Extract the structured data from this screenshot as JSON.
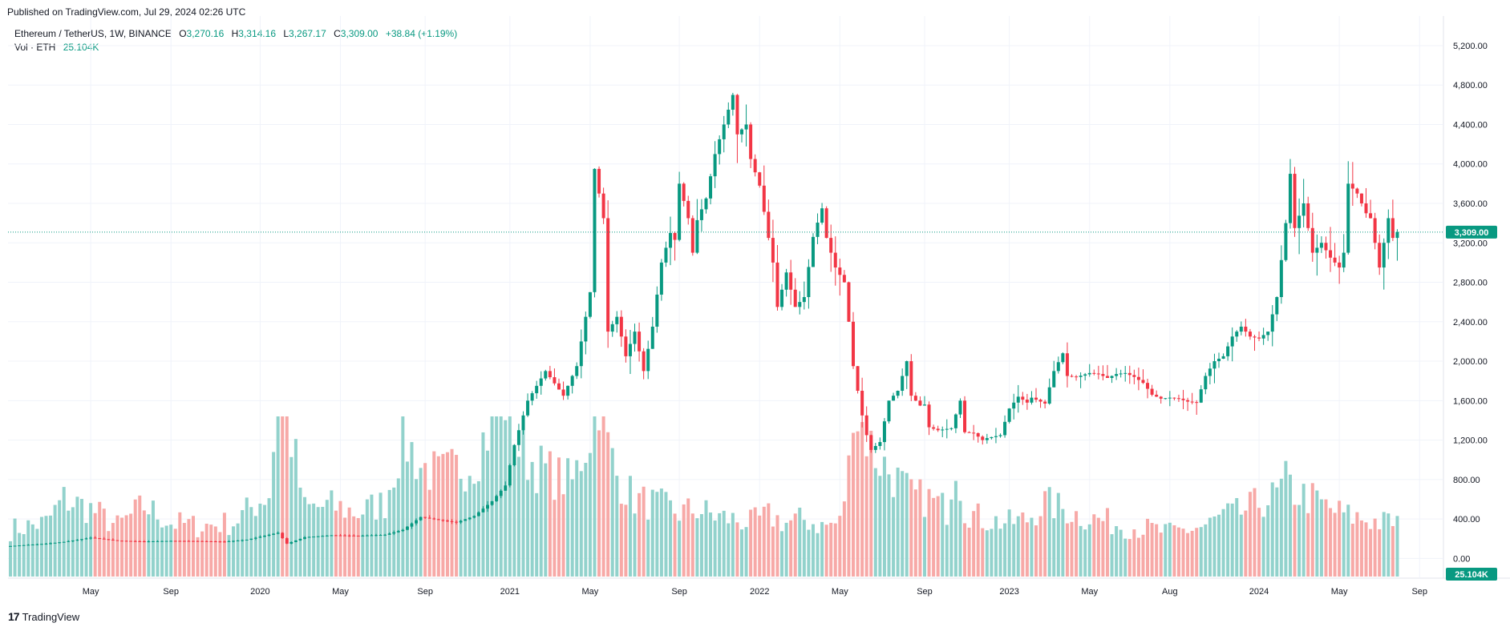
{
  "header": {
    "published": "Published on TradingView.com, Jul 29, 2024 02:26 UTC"
  },
  "legend": {
    "symbol": "Ethereum / TetherUS, 1W, BINANCE",
    "open_label": "O",
    "open": "3,270.16",
    "high_label": "H",
    "high": "3,314.16",
    "low_label": "L",
    "low": "3,267.17",
    "close_label": "C",
    "close": "3,309.00",
    "change": "+38.84 (+1.19%)",
    "vol_label": "Vol · ETH",
    "vol_value": "25.104K"
  },
  "footer": {
    "logo_mark": "17",
    "logo_text": "TradingView"
  },
  "colors": {
    "up": "#089981",
    "down": "#f23645",
    "vol_up": "#92d2cc",
    "vol_down": "#f7a9a7",
    "grid": "#f0f3fa",
    "axis_text": "#131722"
  },
  "chart_data": {
    "type": "candlestick",
    "symbol": "ETHUSDT",
    "interval": "1W",
    "exchange": "BINANCE",
    "last_price": 3309.0,
    "last_price_label": "3,309.00",
    "last_volume_label": "25.104K",
    "y_axis": {
      "ticks": [
        "5,200.00",
        "4,800.00",
        "4,400.00",
        "4,000.00",
        "3,600.00",
        "3,200.00",
        "2,800.00",
        "2,400.00",
        "2,000.00",
        "1,600.00",
        "1,200.00",
        "800.00",
        "400.00",
        "0.00"
      ],
      "tick_values": [
        5200,
        4800,
        4400,
        4000,
        3600,
        3200,
        2800,
        2400,
        2000,
        1600,
        1200,
        800,
        400,
        0
      ],
      "range": [
        -200,
        5500
      ]
    },
    "x_axis": {
      "ticks": [
        "May",
        "Sep",
        "2020",
        "May",
        "Sep",
        "2021",
        "May",
        "Sep",
        "2022",
        "May",
        "Sep",
        "2023",
        "May",
        "Aug",
        "2024",
        "May",
        "Sep"
      ],
      "tick_bar_index": [
        18,
        36,
        56,
        74,
        93,
        112,
        130,
        150,
        168,
        186,
        205,
        224,
        242,
        260,
        280,
        298,
        316
      ]
    },
    "anchors": [
      [
        0,
        126
      ],
      [
        8,
        150
      ],
      [
        12,
        168
      ],
      [
        18,
        210
      ],
      [
        24,
        180
      ],
      [
        30,
        172
      ],
      [
        36,
        178
      ],
      [
        42,
        176
      ],
      [
        48,
        170
      ],
      [
        53,
        190
      ],
      [
        57,
        230
      ],
      [
        60,
        260
      ],
      [
        62,
        150
      ],
      [
        66,
        215
      ],
      [
        72,
        235
      ],
      [
        78,
        230
      ],
      [
        84,
        240
      ],
      [
        88,
        290
      ],
      [
        92,
        420
      ],
      [
        96,
        390
      ],
      [
        100,
        365
      ],
      [
        104,
        430
      ],
      [
        108,
        580
      ],
      [
        111,
        740
      ],
      [
        113,
        1150
      ],
      [
        116,
        1600
      ],
      [
        120,
        1900
      ],
      [
        124,
        1650
      ],
      [
        127,
        1950
      ],
      [
        130,
        2700
      ],
      [
        131,
        3950
      ],
      [
        133,
        3450
      ],
      [
        134,
        2300
      ],
      [
        136,
        2450
      ],
      [
        138,
        2050
      ],
      [
        140,
        2300
      ],
      [
        142,
        1900
      ],
      [
        144,
        2350
      ],
      [
        146,
        3000
      ],
      [
        148,
        3300
      ],
      [
        149,
        3230
      ],
      [
        150,
        3800
      ],
      [
        152,
        3450
      ],
      [
        153,
        3100
      ],
      [
        154,
        3430
      ],
      [
        156,
        3650
      ],
      [
        158,
        4100
      ],
      [
        161,
        4550
      ],
      [
        162,
        4700
      ],
      [
        163,
        4300
      ],
      [
        165,
        4400
      ],
      [
        166,
        4050
      ],
      [
        168,
        3780
      ],
      [
        170,
        3250
      ],
      [
        171,
        3000
      ],
      [
        172,
        2550
      ],
      [
        174,
        2900
      ],
      [
        176,
        2550
      ],
      [
        178,
        2650
      ],
      [
        180,
        3260
      ],
      [
        182,
        3550
      ],
      [
        183,
        3250
      ],
      [
        185,
        2950
      ],
      [
        187,
        2800
      ],
      [
        188,
        2400
      ],
      [
        189,
        1950
      ],
      [
        190,
        1700
      ],
      [
        191,
        1450
      ],
      [
        192,
        1250
      ],
      [
        193,
        1100
      ],
      [
        195,
        1180
      ],
      [
        197,
        1600
      ],
      [
        199,
        1700
      ],
      [
        201,
        2000
      ],
      [
        202,
        1650
      ],
      [
        204,
        1550
      ],
      [
        205,
        1560
      ],
      [
        206,
        1330
      ],
      [
        208,
        1300
      ],
      [
        211,
        1320
      ],
      [
        213,
        1600
      ],
      [
        214,
        1280
      ],
      [
        216,
        1270
      ],
      [
        218,
        1200
      ],
      [
        219,
        1220
      ],
      [
        222,
        1250
      ],
      [
        224,
        1520
      ],
      [
        226,
        1640
      ],
      [
        228,
        1580
      ],
      [
        229,
        1630
      ],
      [
        232,
        1570
      ],
      [
        234,
        1900
      ],
      [
        236,
        2080
      ],
      [
        237,
        1850
      ],
      [
        239,
        1840
      ],
      [
        242,
        1880
      ],
      [
        244,
        1870
      ],
      [
        246,
        1830
      ],
      [
        248,
        1870
      ],
      [
        250,
        1880
      ],
      [
        252,
        1840
      ],
      [
        254,
        1780
      ],
      [
        256,
        1660
      ],
      [
        258,
        1620
      ],
      [
        260,
        1630
      ],
      [
        262,
        1620
      ],
      [
        264,
        1590
      ],
      [
        266,
        1580
      ],
      [
        268,
        1850
      ],
      [
        270,
        2000
      ],
      [
        272,
        2050
      ],
      [
        274,
        2250
      ],
      [
        276,
        2350
      ],
      [
        278,
        2250
      ],
      [
        280,
        2230
      ],
      [
        282,
        2300
      ],
      [
        284,
        2650
      ],
      [
        286,
        3400
      ],
      [
        287,
        3900
      ],
      [
        288,
        3350
      ],
      [
        290,
        3600
      ],
      [
        292,
        3100
      ],
      [
        294,
        3200
      ],
      [
        296,
        3050
      ],
      [
        298,
        2950
      ],
      [
        299,
        3100
      ],
      [
        300,
        3800
      ],
      [
        302,
        3700
      ],
      [
        304,
        3500
      ],
      [
        305,
        3450
      ],
      [
        307,
        2950
      ],
      [
        309,
        3450
      ],
      [
        310,
        3250
      ],
      [
        311,
        3300
      ]
    ],
    "volume_anchors": [
      [
        0,
        140
      ],
      [
        8,
        160
      ],
      [
        12,
        230
      ],
      [
        18,
        200
      ],
      [
        24,
        150
      ],
      [
        30,
        210
      ],
      [
        36,
        160
      ],
      [
        42,
        150
      ],
      [
        50,
        160
      ],
      [
        58,
        250
      ],
      [
        60,
        520
      ],
      [
        62,
        480
      ],
      [
        66,
        200
      ],
      [
        72,
        210
      ],
      [
        78,
        190
      ],
      [
        84,
        220
      ],
      [
        88,
        420
      ],
      [
        92,
        330
      ],
      [
        96,
        300
      ],
      [
        100,
        320
      ],
      [
        104,
        350
      ],
      [
        108,
        460
      ],
      [
        110,
        560
      ],
      [
        112,
        510
      ],
      [
        114,
        380
      ],
      [
        118,
        330
      ],
      [
        122,
        300
      ],
      [
        126,
        280
      ],
      [
        130,
        430
      ],
      [
        131,
        620
      ],
      [
        132,
        560
      ],
      [
        134,
        390
      ],
      [
        136,
        300
      ],
      [
        140,
        230
      ],
      [
        146,
        210
      ],
      [
        150,
        190
      ],
      [
        154,
        200
      ],
      [
        158,
        180
      ],
      [
        162,
        170
      ],
      [
        166,
        160
      ],
      [
        170,
        180
      ],
      [
        174,
        160
      ],
      [
        178,
        170
      ],
      [
        182,
        150
      ],
      [
        186,
        160
      ],
      [
        188,
        320
      ],
      [
        189,
        560
      ],
      [
        190,
        480
      ],
      [
        192,
        420
      ],
      [
        194,
        360
      ],
      [
        198,
        300
      ],
      [
        202,
        240
      ],
      [
        206,
        230
      ],
      [
        210,
        200
      ],
      [
        212,
        360
      ],
      [
        214,
        200
      ],
      [
        218,
        170
      ],
      [
        224,
        160
      ],
      [
        228,
        170
      ],
      [
        232,
        220
      ],
      [
        236,
        200
      ],
      [
        240,
        180
      ],
      [
        244,
        170
      ],
      [
        250,
        150
      ],
      [
        256,
        140
      ],
      [
        260,
        130
      ],
      [
        264,
        140
      ],
      [
        268,
        150
      ],
      [
        272,
        180
      ],
      [
        276,
        190
      ],
      [
        280,
        220
      ],
      [
        284,
        240
      ],
      [
        286,
        280
      ],
      [
        288,
        250
      ],
      [
        292,
        230
      ],
      [
        296,
        200
      ],
      [
        300,
        180
      ],
      [
        304,
        170
      ],
      [
        308,
        160
      ],
      [
        311,
        165
      ]
    ],
    "volume_scale_note": "volume axis unlabeled (scaled K)",
    "bar_count": 312,
    "grid": true
  }
}
